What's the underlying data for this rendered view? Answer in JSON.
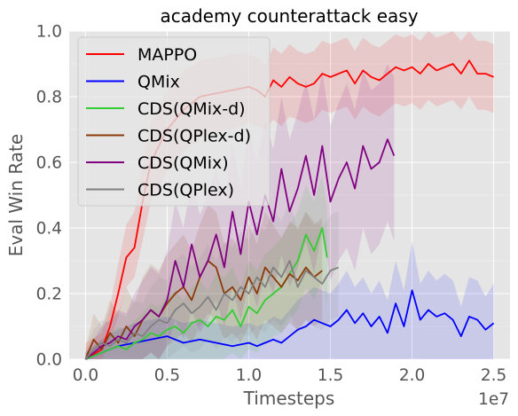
{
  "chart_data": {
    "type": "line",
    "title": "academy counterattack easy",
    "xlabel": "Timesteps",
    "ylabel": "Eval Win Rate",
    "x_multiplier_label": "1e7",
    "xlim": [
      -0.1,
      2.6
    ],
    "ylim": [
      0.0,
      1.0
    ],
    "x_ticks": [
      "0.0",
      "0.5",
      "1.0",
      "1.5",
      "2.0",
      "2.5"
    ],
    "y_ticks": [
      "0.0",
      "0.2",
      "0.4",
      "0.6",
      "0.8",
      "1.0"
    ],
    "grid": true,
    "legend_position": "top-left",
    "series": [
      {
        "name": "MAPPO",
        "color": "#ff0000",
        "x": [
          0.0,
          0.1,
          0.15,
          0.2,
          0.25,
          0.3,
          0.35,
          0.4,
          0.5,
          0.6,
          0.7,
          0.8,
          0.9,
          1.0,
          1.05,
          1.1,
          1.15,
          1.2,
          1.25,
          1.3,
          1.35,
          1.4,
          1.45,
          1.5,
          1.55,
          1.6,
          1.65,
          1.7,
          1.75,
          1.8,
          1.85,
          1.9,
          1.95,
          2.0,
          2.05,
          2.1,
          2.15,
          2.2,
          2.25,
          2.3,
          2.35,
          2.4,
          2.45,
          2.5
        ],
        "y": [
          0.0,
          0.03,
          0.1,
          0.2,
          0.31,
          0.34,
          0.48,
          0.6,
          0.7,
          0.76,
          0.8,
          0.81,
          0.82,
          0.83,
          0.82,
          0.8,
          0.85,
          0.83,
          0.86,
          0.84,
          0.83,
          0.84,
          0.87,
          0.86,
          0.87,
          0.88,
          0.84,
          0.88,
          0.86,
          0.85,
          0.87,
          0.89,
          0.88,
          0.89,
          0.87,
          0.9,
          0.88,
          0.89,
          0.9,
          0.87,
          0.91,
          0.87,
          0.87,
          0.86
        ],
        "band_lower": [
          0.0,
          0.0,
          0.05,
          0.13,
          0.22,
          0.25,
          0.36,
          0.48,
          0.57,
          0.63,
          0.67,
          0.69,
          0.7,
          0.72,
          0.71,
          0.7,
          0.73,
          0.71,
          0.74,
          0.73,
          0.72,
          0.73,
          0.76,
          0.75,
          0.76,
          0.77,
          0.73,
          0.77,
          0.75,
          0.74,
          0.76,
          0.78,
          0.77,
          0.78,
          0.76,
          0.79,
          0.77,
          0.78,
          0.79,
          0.76,
          0.8,
          0.76,
          0.76,
          0.75
        ],
        "band_upper": [
          0.05,
          0.08,
          0.16,
          0.29,
          0.41,
          0.45,
          0.6,
          0.72,
          0.82,
          0.88,
          0.91,
          0.92,
          0.93,
          0.93,
          0.92,
          0.9,
          0.95,
          0.93,
          0.96,
          0.94,
          0.93,
          0.94,
          0.97,
          0.96,
          0.97,
          0.98,
          0.94,
          0.98,
          0.96,
          0.95,
          0.97,
          0.99,
          0.98,
          0.99,
          0.97,
          1.0,
          0.98,
          0.99,
          1.0,
          0.97,
          1.0,
          0.97,
          0.97,
          0.96
        ]
      },
      {
        "name": "QMix",
        "color": "#0000ff",
        "x": [
          0.0,
          0.1,
          0.2,
          0.3,
          0.4,
          0.5,
          0.6,
          0.7,
          0.8,
          0.9,
          1.0,
          1.05,
          1.1,
          1.15,
          1.2,
          1.25,
          1.3,
          1.35,
          1.4,
          1.45,
          1.5,
          1.55,
          1.6,
          1.65,
          1.7,
          1.75,
          1.8,
          1.85,
          1.9,
          1.95,
          2.0,
          2.05,
          2.1,
          2.15,
          2.2,
          2.25,
          2.3,
          2.35,
          2.4,
          2.45,
          2.5
        ],
        "y": [
          0.0,
          0.02,
          0.04,
          0.05,
          0.06,
          0.07,
          0.05,
          0.06,
          0.05,
          0.04,
          0.05,
          0.04,
          0.05,
          0.06,
          0.05,
          0.07,
          0.09,
          0.1,
          0.12,
          0.11,
          0.1,
          0.12,
          0.15,
          0.11,
          0.14,
          0.1,
          0.13,
          0.08,
          0.17,
          0.1,
          0.21,
          0.12,
          0.15,
          0.13,
          0.14,
          0.12,
          0.07,
          0.13,
          0.12,
          0.09,
          0.11
        ],
        "band_lower": [
          0.0,
          0.0,
          0.0,
          0.0,
          0.0,
          0.0,
          0.0,
          0.0,
          0.0,
          0.0,
          0.0,
          0.0,
          0.0,
          0.0,
          0.0,
          0.0,
          0.0,
          0.0,
          0.0,
          0.0,
          0.0,
          0.0,
          0.0,
          0.0,
          0.0,
          0.0,
          0.0,
          0.0,
          0.0,
          0.0,
          0.0,
          0.0,
          0.0,
          0.0,
          0.0,
          0.0,
          0.0,
          0.0,
          0.0,
          0.0,
          0.0
        ],
        "band_upper": [
          0.02,
          0.06,
          0.09,
          0.11,
          0.12,
          0.13,
          0.11,
          0.12,
          0.11,
          0.1,
          0.11,
          0.1,
          0.11,
          0.13,
          0.12,
          0.15,
          0.18,
          0.2,
          0.22,
          0.21,
          0.2,
          0.23,
          0.27,
          0.22,
          0.25,
          0.2,
          0.24,
          0.18,
          0.3,
          0.21,
          0.36,
          0.23,
          0.27,
          0.24,
          0.26,
          0.24,
          0.16,
          0.25,
          0.24,
          0.19,
          0.23
        ]
      },
      {
        "name": "CDS(QMix-d)",
        "color": "#33cc33",
        "x": [
          0.0,
          0.05,
          0.1,
          0.15,
          0.2,
          0.25,
          0.3,
          0.35,
          0.4,
          0.45,
          0.5,
          0.55,
          0.6,
          0.65,
          0.7,
          0.75,
          0.8,
          0.85,
          0.9,
          0.95,
          1.0,
          1.05,
          1.1,
          1.15,
          1.2,
          1.25,
          1.3,
          1.35,
          1.4,
          1.45,
          1.48
        ],
        "y": [
          0.0,
          0.01,
          0.02,
          0.03,
          0.04,
          0.03,
          0.05,
          0.06,
          0.08,
          0.07,
          0.09,
          0.1,
          0.08,
          0.11,
          0.12,
          0.1,
          0.13,
          0.12,
          0.15,
          0.1,
          0.16,
          0.14,
          0.18,
          0.2,
          0.22,
          0.26,
          0.3,
          0.38,
          0.33,
          0.4,
          0.31
        ],
        "band_lower": [
          0.0,
          0.0,
          0.0,
          0.0,
          0.0,
          0.0,
          0.0,
          0.0,
          0.0,
          0.0,
          0.0,
          0.0,
          0.0,
          0.0,
          0.0,
          0.0,
          0.0,
          0.0,
          0.02,
          0.0,
          0.03,
          0.02,
          0.05,
          0.07,
          0.08,
          0.12,
          0.15,
          0.22,
          0.18,
          0.24,
          0.16
        ],
        "band_upper": [
          0.02,
          0.04,
          0.06,
          0.08,
          0.1,
          0.09,
          0.12,
          0.14,
          0.17,
          0.16,
          0.19,
          0.21,
          0.18,
          0.22,
          0.24,
          0.21,
          0.26,
          0.25,
          0.28,
          0.22,
          0.3,
          0.27,
          0.32,
          0.34,
          0.37,
          0.41,
          0.45,
          0.53,
          0.48,
          0.56,
          0.46
        ]
      },
      {
        "name": "CDS(QPlex-d)",
        "color": "#8b3a0a",
        "x": [
          0.0,
          0.05,
          0.1,
          0.15,
          0.2,
          0.25,
          0.3,
          0.35,
          0.4,
          0.45,
          0.5,
          0.55,
          0.6,
          0.65,
          0.7,
          0.75,
          0.8,
          0.85,
          0.9,
          0.95,
          1.0,
          1.05,
          1.1,
          1.15,
          1.2,
          1.25,
          1.3,
          1.35,
          1.4,
          1.45
        ],
        "y": [
          0.0,
          0.06,
          0.03,
          0.08,
          0.05,
          0.1,
          0.07,
          0.12,
          0.15,
          0.13,
          0.17,
          0.2,
          0.22,
          0.18,
          0.25,
          0.3,
          0.28,
          0.2,
          0.22,
          0.18,
          0.25,
          0.2,
          0.28,
          0.25,
          0.22,
          0.26,
          0.24,
          0.28,
          0.25,
          0.27
        ],
        "band_lower": [
          0.0,
          0.0,
          0.0,
          0.0,
          0.0,
          0.0,
          0.0,
          0.0,
          0.02,
          0.0,
          0.04,
          0.06,
          0.08,
          0.05,
          0.1,
          0.14,
          0.12,
          0.06,
          0.08,
          0.05,
          0.1,
          0.06,
          0.12,
          0.1,
          0.08,
          0.11,
          0.09,
          0.12,
          0.1,
          0.12
        ],
        "band_upper": [
          0.03,
          0.14,
          0.1,
          0.18,
          0.14,
          0.22,
          0.17,
          0.25,
          0.29,
          0.27,
          0.32,
          0.35,
          0.38,
          0.33,
          0.41,
          0.47,
          0.45,
          0.35,
          0.37,
          0.32,
          0.41,
          0.35,
          0.45,
          0.41,
          0.37,
          0.42,
          0.4,
          0.45,
          0.41,
          0.43
        ]
      },
      {
        "name": "CDS(QMix)",
        "color": "#800080",
        "x": [
          0.0,
          0.05,
          0.1,
          0.15,
          0.2,
          0.25,
          0.3,
          0.35,
          0.4,
          0.45,
          0.5,
          0.55,
          0.6,
          0.65,
          0.7,
          0.75,
          0.8,
          0.85,
          0.9,
          0.95,
          1.0,
          1.05,
          1.1,
          1.15,
          1.2,
          1.25,
          1.3,
          1.35,
          1.4,
          1.45,
          1.5,
          1.55,
          1.6,
          1.65,
          1.7,
          1.75,
          1.8,
          1.85,
          1.89
        ],
        "y": [
          0.0,
          0.02,
          0.04,
          0.05,
          0.07,
          0.06,
          0.1,
          0.12,
          0.15,
          0.13,
          0.18,
          0.3,
          0.22,
          0.35,
          0.25,
          0.3,
          0.38,
          0.28,
          0.45,
          0.32,
          0.48,
          0.38,
          0.5,
          0.42,
          0.58,
          0.45,
          0.52,
          0.62,
          0.5,
          0.65,
          0.48,
          0.55,
          0.6,
          0.52,
          0.65,
          0.58,
          0.6,
          0.67,
          0.62
        ],
        "band_lower": [
          0.0,
          0.0,
          0.0,
          0.0,
          0.0,
          0.0,
          0.0,
          0.0,
          0.02,
          0.0,
          0.04,
          0.12,
          0.06,
          0.15,
          0.08,
          0.12,
          0.18,
          0.1,
          0.22,
          0.12,
          0.24,
          0.16,
          0.26,
          0.2,
          0.32,
          0.22,
          0.28,
          0.36,
          0.26,
          0.4,
          0.24,
          0.3,
          0.34,
          0.27,
          0.4,
          0.32,
          0.35,
          0.42,
          0.36
        ],
        "band_upper": [
          0.02,
          0.06,
          0.1,
          0.12,
          0.15,
          0.14,
          0.2,
          0.24,
          0.28,
          0.26,
          0.33,
          0.48,
          0.4,
          0.55,
          0.44,
          0.5,
          0.58,
          0.48,
          0.66,
          0.52,
          0.7,
          0.6,
          0.73,
          0.64,
          0.8,
          0.67,
          0.75,
          0.85,
          0.73,
          0.88,
          0.71,
          0.78,
          0.84,
          0.76,
          0.88,
          0.82,
          0.84,
          0.9,
          0.86
        ]
      },
      {
        "name": "CDS(QPlex)",
        "color": "#808080",
        "x": [
          0.0,
          0.05,
          0.1,
          0.15,
          0.2,
          0.25,
          0.3,
          0.35,
          0.4,
          0.45,
          0.5,
          0.55,
          0.6,
          0.65,
          0.7,
          0.75,
          0.8,
          0.85,
          0.9,
          0.95,
          1.0,
          1.05,
          1.1,
          1.15,
          1.2,
          1.25,
          1.3,
          1.35,
          1.4,
          1.45,
          1.5,
          1.55
        ],
        "y": [
          0.0,
          0.03,
          0.05,
          0.04,
          0.06,
          0.05,
          0.08,
          0.07,
          0.1,
          0.12,
          0.11,
          0.15,
          0.17,
          0.14,
          0.16,
          0.19,
          0.15,
          0.2,
          0.18,
          0.22,
          0.2,
          0.25,
          0.22,
          0.28,
          0.25,
          0.3,
          0.22,
          0.27,
          0.25,
          0.23,
          0.27,
          0.28
        ],
        "band_lower": [
          0.0,
          0.0,
          0.0,
          0.0,
          0.0,
          0.0,
          0.0,
          0.0,
          0.0,
          0.0,
          0.0,
          0.02,
          0.04,
          0.02,
          0.03,
          0.06,
          0.03,
          0.07,
          0.05,
          0.08,
          0.07,
          0.1,
          0.08,
          0.12,
          0.1,
          0.14,
          0.08,
          0.12,
          0.1,
          0.09,
          0.12,
          0.13
        ],
        "band_upper": [
          0.02,
          0.09,
          0.12,
          0.11,
          0.14,
          0.13,
          0.18,
          0.17,
          0.22,
          0.25,
          0.24,
          0.3,
          0.32,
          0.28,
          0.31,
          0.35,
          0.3,
          0.36,
          0.34,
          0.39,
          0.36,
          0.42,
          0.39,
          0.46,
          0.42,
          0.48,
          0.39,
          0.45,
          0.42,
          0.4,
          0.44,
          0.45
        ]
      }
    ]
  }
}
